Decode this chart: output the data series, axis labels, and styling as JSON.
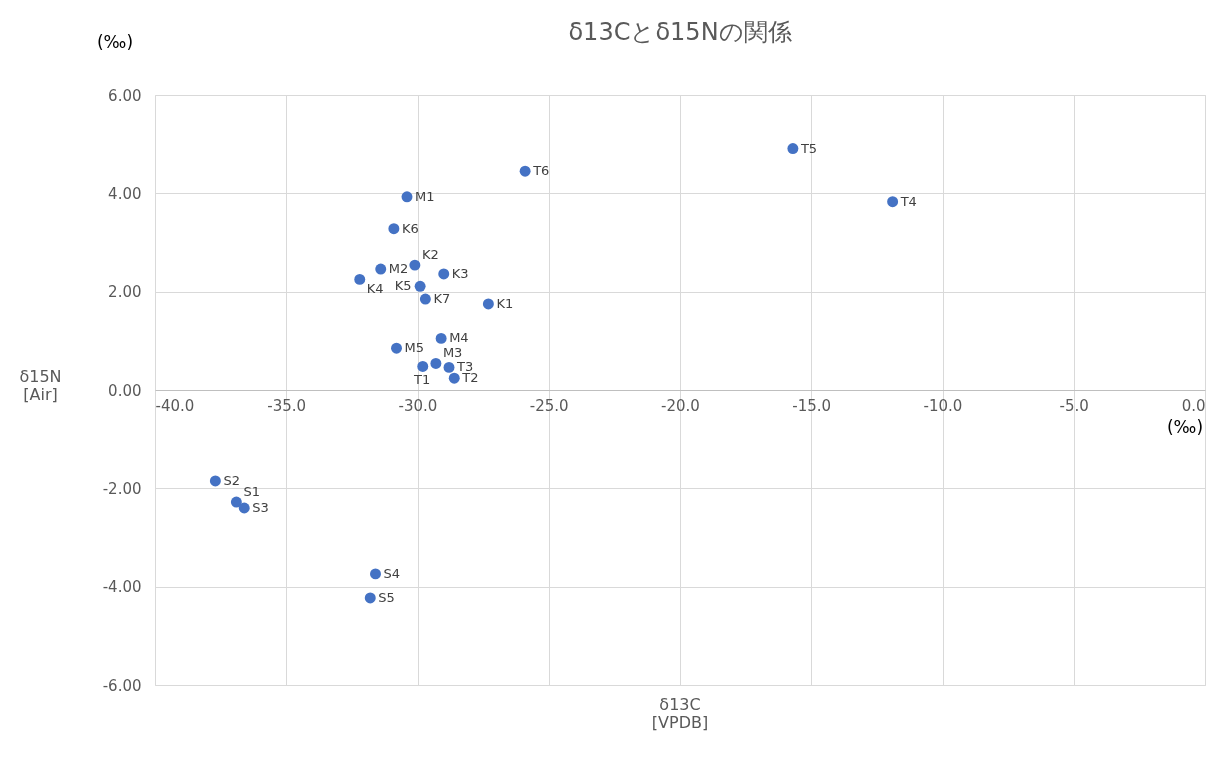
{
  "chart_data": {
    "type": "scatter",
    "title": "δ13Cとδ15Nの関係",
    "xlabel": "δ13C\n[VPDB]",
    "ylabel": "δ15N\n[Air]",
    "annotations": [
      "(‰)",
      "(‰)"
    ],
    "xlim": [
      -40,
      0
    ],
    "ylim": [
      -6,
      6
    ],
    "xticks": [
      {
        "value": -40,
        "label": "-40.0"
      },
      {
        "value": -35,
        "label": "-35.0"
      },
      {
        "value": -30,
        "label": "-30.0"
      },
      {
        "value": -25,
        "label": "-25.0"
      },
      {
        "value": -20,
        "label": "-20.0"
      },
      {
        "value": -15,
        "label": "-15.0"
      },
      {
        "value": -10,
        "label": "-10.0"
      },
      {
        "value": -5,
        "label": "-5.0"
      },
      {
        "value": 0,
        "label": "0.0"
      }
    ],
    "yticks": [
      {
        "value": -6,
        "label": "-6.00"
      },
      {
        "value": -4,
        "label": "-4.00"
      },
      {
        "value": -2,
        "label": "-2.00"
      },
      {
        "value": 0,
        "label": "0.00"
      },
      {
        "value": 2,
        "label": "2.00"
      },
      {
        "value": 4,
        "label": "4.00"
      },
      {
        "value": 6,
        "label": "6.00"
      }
    ],
    "grid": true,
    "legend": false,
    "marker": "circle",
    "series": [
      {
        "name": "M1",
        "color": "#4472c4",
        "x": [
          -30.4
        ],
        "values": [
          3.93
        ]
      },
      {
        "name": "K6",
        "color": "#4472c4",
        "x": [
          -30.9
        ],
        "values": [
          3.28
        ]
      },
      {
        "name": "M2",
        "color": "#4472c4",
        "x": [
          -31.4
        ],
        "values": [
          2.46
        ]
      },
      {
        "name": "K4",
        "color": "#4472c4",
        "x": [
          -32.2
        ],
        "values": [
          2.25
        ]
      },
      {
        "name": "K2",
        "color": "#4472c4",
        "x": [
          -30.1
        ],
        "values": [
          2.54
        ]
      },
      {
        "name": "K3",
        "color": "#4472c4",
        "x": [
          -29.0
        ],
        "values": [
          2.36
        ]
      },
      {
        "name": "K5",
        "color": "#4472c4",
        "x": [
          -29.9
        ],
        "values": [
          2.11
        ]
      },
      {
        "name": "K7",
        "color": "#4472c4",
        "x": [
          -29.7
        ],
        "values": [
          1.85
        ]
      },
      {
        "name": "K1",
        "color": "#4472c4",
        "x": [
          -27.3
        ],
        "values": [
          1.75
        ]
      },
      {
        "name": "M4",
        "color": "#4472c4",
        "x": [
          -29.1
        ],
        "values": [
          1.05
        ]
      },
      {
        "name": "M5",
        "color": "#4472c4",
        "x": [
          -30.8
        ],
        "values": [
          0.85
        ]
      },
      {
        "name": "T1",
        "color": "#4472c4",
        "x": [
          -29.8
        ],
        "values": [
          0.48
        ]
      },
      {
        "name": "M3",
        "color": "#4472c4",
        "x": [
          -29.3
        ],
        "values": [
          0.54
        ]
      },
      {
        "name": "T3",
        "color": "#4472c4",
        "x": [
          -28.8
        ],
        "values": [
          0.46
        ]
      },
      {
        "name": "T2",
        "color": "#4472c4",
        "x": [
          -28.6
        ],
        "values": [
          0.24
        ]
      },
      {
        "name": "T6",
        "color": "#4472c4",
        "x": [
          -25.9
        ],
        "values": [
          4.45
        ]
      },
      {
        "name": "T5",
        "color": "#4472c4",
        "x": [
          -15.7
        ],
        "values": [
          4.91
        ]
      },
      {
        "name": "T4",
        "color": "#4472c4",
        "x": [
          -11.9
        ],
        "values": [
          3.83
        ]
      },
      {
        "name": "S2",
        "color": "#4472c4",
        "x": [
          -37.7
        ],
        "values": [
          -1.85
        ]
      },
      {
        "name": "S1",
        "color": "#4472c4",
        "x": [
          -36.9
        ],
        "values": [
          -2.28
        ]
      },
      {
        "name": "S3",
        "color": "#4472c4",
        "x": [
          -36.6
        ],
        "values": [
          -2.4
        ]
      },
      {
        "name": "S4",
        "color": "#4472c4",
        "x": [
          -31.6
        ],
        "values": [
          -3.74
        ]
      },
      {
        "name": "S5",
        "color": "#4472c4",
        "x": [
          -31.8
        ],
        "values": [
          -4.23
        ]
      }
    ]
  }
}
